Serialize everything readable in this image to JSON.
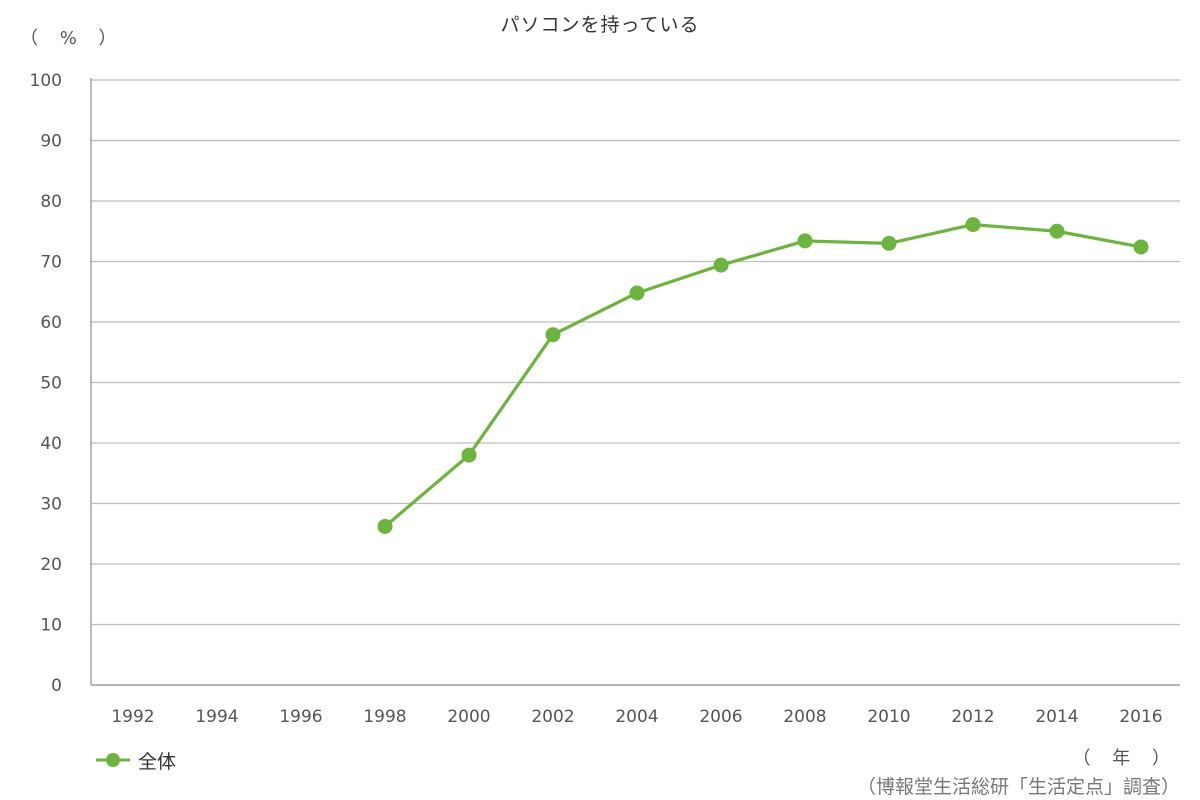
{
  "chart_data": {
    "type": "line",
    "title": "パソコンを持っている",
    "ylabel": "（ % ）",
    "xlabel": "（ 年 ）",
    "source": "（博報堂生活総研「生活定点」調査）",
    "ylim": [
      0,
      100
    ],
    "yticks": [
      0,
      10,
      20,
      30,
      40,
      50,
      60,
      70,
      80,
      90,
      100
    ],
    "categories": [
      "1992",
      "1994",
      "1996",
      "1998",
      "2000",
      "2002",
      "2004",
      "2006",
      "2008",
      "2010",
      "2012",
      "2014",
      "2016"
    ],
    "series": [
      {
        "name": "全体",
        "color": "#6db33f",
        "values": [
          null,
          null,
          null,
          26.2,
          38.0,
          57.9,
          64.8,
          69.4,
          73.4,
          73.0,
          76.1,
          75.0,
          72.4
        ]
      }
    ],
    "grid": true,
    "legend_position": "bottom-left"
  }
}
